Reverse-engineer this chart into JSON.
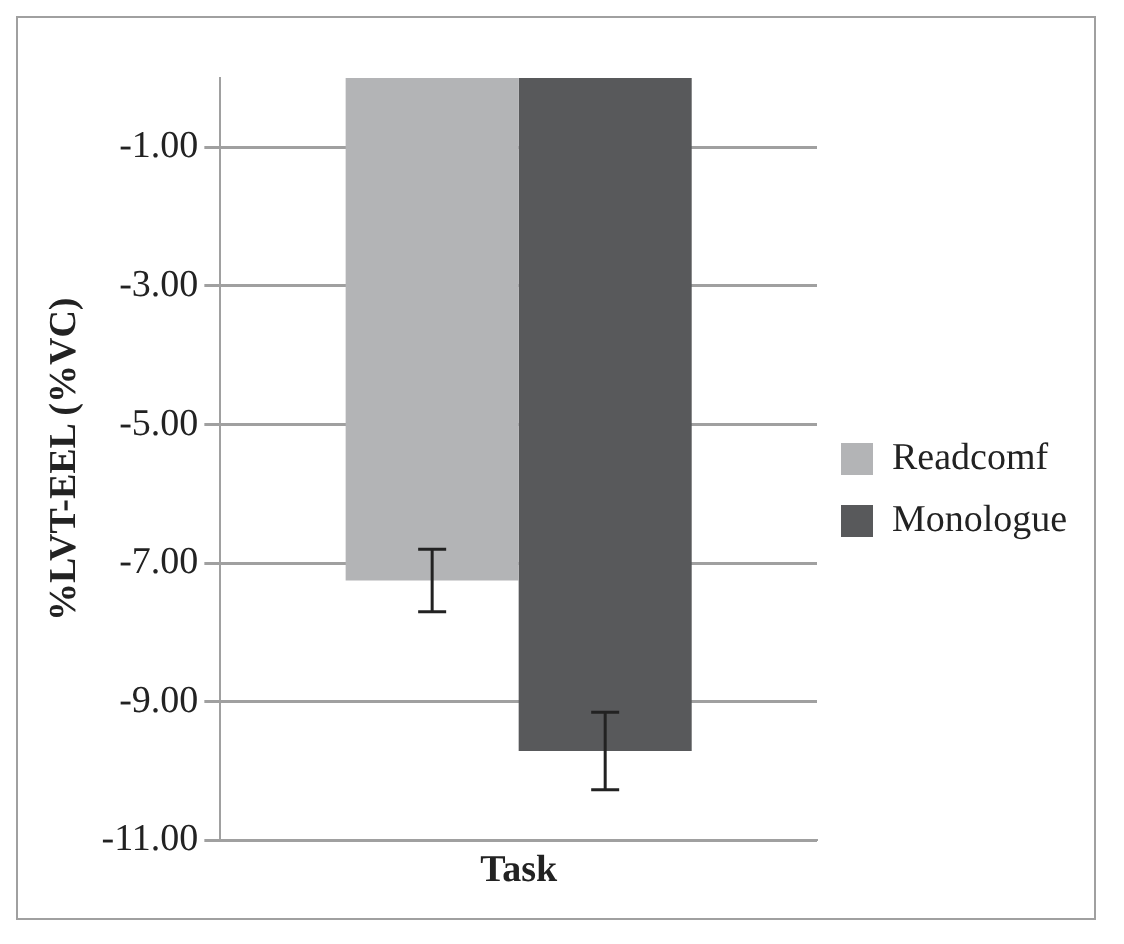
{
  "chart_data": {
    "type": "bar",
    "xlabel": "Task",
    "ylabel": "%LVT-EEL (%VC)",
    "categories": [
      null
    ],
    "series": [
      {
        "name": "Readcomf",
        "color": "#b3b4b6",
        "values": [
          -7.25
        ],
        "errors": [
          0.45
        ]
      },
      {
        "name": "Monologue",
        "color": "#58595b",
        "values": [
          -9.71
        ],
        "errors": [
          0.56
        ]
      }
    ],
    "ylim": [
      -11,
      0
    ],
    "yticks": [
      {
        "value": -11,
        "label": "-11.00"
      },
      {
        "value": -9,
        "label": "-9.00"
      },
      {
        "value": -7,
        "label": "-7.00"
      },
      {
        "value": -5,
        "label": "-5.00"
      },
      {
        "value": -3,
        "label": "-3.00"
      },
      {
        "value": -1,
        "label": "-1.00"
      }
    ],
    "grid": "y",
    "legend": "right",
    "tick_labels": "y"
  }
}
